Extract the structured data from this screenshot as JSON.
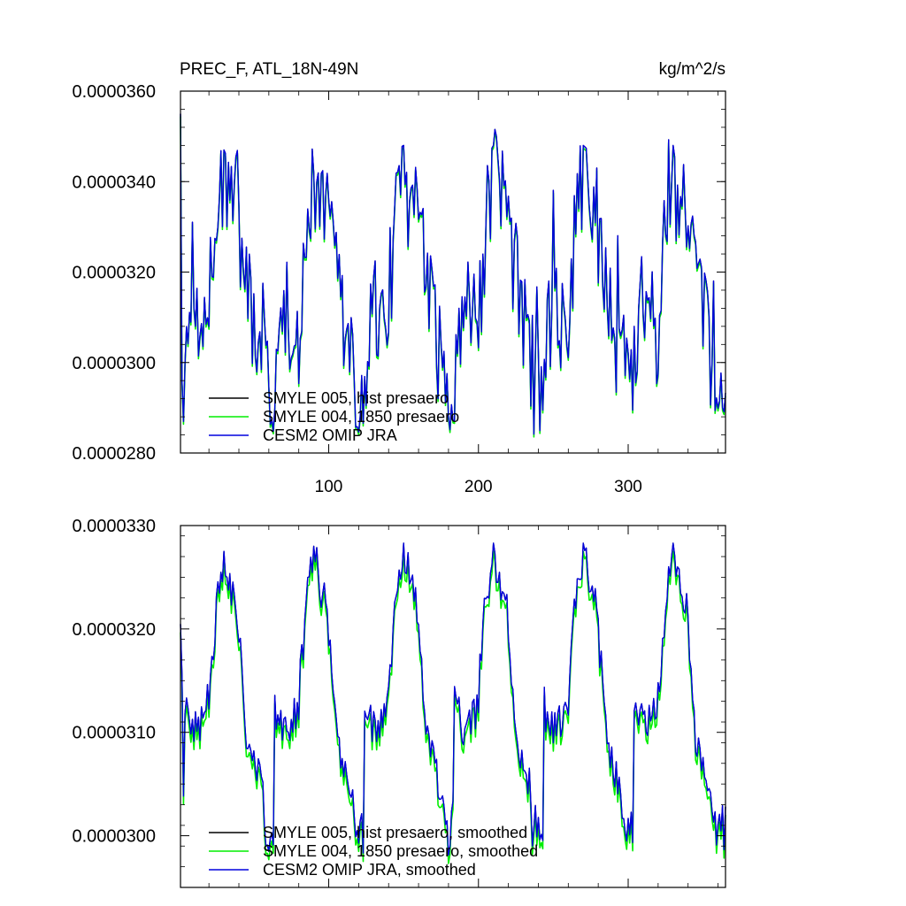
{
  "figure": {
    "title_left": "PREC_F, ATL_18N-49N",
    "title_right": "kg/m^2/s"
  },
  "colors": {
    "hist": "#000000",
    "presaero1850": "#00ee00",
    "jra": "#0000dd",
    "axis": "#000000",
    "background": "#ffffff"
  },
  "chart_data": [
    {
      "type": "line",
      "panel": "top",
      "xlim": [
        1,
        365
      ],
      "ylim": [
        2.8e-05,
        3.6e-05
      ],
      "xticks": [
        100,
        200,
        300
      ],
      "xticklabels": [
        "100",
        "200",
        "300"
      ],
      "yticks": [
        2.8e-05,
        3e-05,
        3.2e-05,
        3.4e-05,
        3.6e-05
      ],
      "yticklabels": [
        "0.0000280",
        "0.0000300",
        "0.0000320",
        "0.0000340",
        "0.0000360"
      ],
      "legend_position": "bottom-left",
      "series": [
        {
          "name": "SMYLE 005, hist presaero",
          "key": "hist"
        },
        {
          "name": "SMYLE 004, 1850 presaero",
          "key": "presaero1850"
        },
        {
          "name": "CESM2 OMIP JRA",
          "key": "jra"
        }
      ],
      "annual_cycle": {
        "day": [
          1,
          3,
          10,
          20,
          28,
          30,
          35,
          40,
          45,
          50,
          55,
          60,
          63
        ],
        "value": [
          3.55e-05,
          2.96e-05,
          3.14e-05,
          3.05e-05,
          3.27e-05,
          3.31e-05,
          3.24e-05,
          3.28e-05,
          3.2e-05,
          3.07e-05,
          3.02e-05,
          2.96e-05,
          2.97e-05
        ]
      },
      "cycle_period_days": 60,
      "peak_values": [
        3.47e-05,
        3.42e-05,
        3.48e-05,
        3.48e-05,
        3.48e-05,
        3.48e-05
      ],
      "minimum_value": 2.84e-05,
      "green_offset": -6e-08
    },
    {
      "type": "line",
      "panel": "bottom",
      "xlim": [
        1,
        365
      ],
      "ylim": [
        2.95e-05,
        3.3e-05
      ],
      "xticks": [
        100,
        200,
        300
      ],
      "xticklabels": [
        "",
        "",
        ""
      ],
      "yticks": [
        3e-05,
        3.1e-05,
        3.2e-05,
        3.3e-05
      ],
      "yticklabels": [
        "0.0000300",
        "0.0000310",
        "0.0000320",
        "0.0000330"
      ],
      "legend_position": "bottom-left",
      "series": [
        {
          "name": "SMYLE 005, hist presaero, smoothed",
          "key": "hist"
        },
        {
          "name": "SMYLE 004, 1850 presaero, smoothed",
          "key": "presaero1850"
        },
        {
          "name": "CESM2 OMIP JRA, smoothed",
          "key": "jra"
        }
      ],
      "annual_cycle": {
        "day": [
          1,
          5,
          12,
          20,
          25,
          30,
          34,
          40,
          45,
          50,
          54,
          60,
          63
        ],
        "value": [
          3.19e-05,
          3.12e-05,
          3.1e-05,
          3.13e-05,
          3.22e-05,
          3.27e-05,
          3.24e-05,
          3.2e-05,
          3.1e-05,
          3.07e-05,
          3.05e-05,
          3e-05,
          3.01e-05
        ]
      },
      "cycle_period_days": 60,
      "peak_values": [
        3.275e-05,
        3.28e-05,
        3.283e-05,
        3.283e-05,
        3.283e-05,
        3.283e-05
      ],
      "minimum_value": 2.98e-05,
      "green_offset": -8e-08
    }
  ]
}
